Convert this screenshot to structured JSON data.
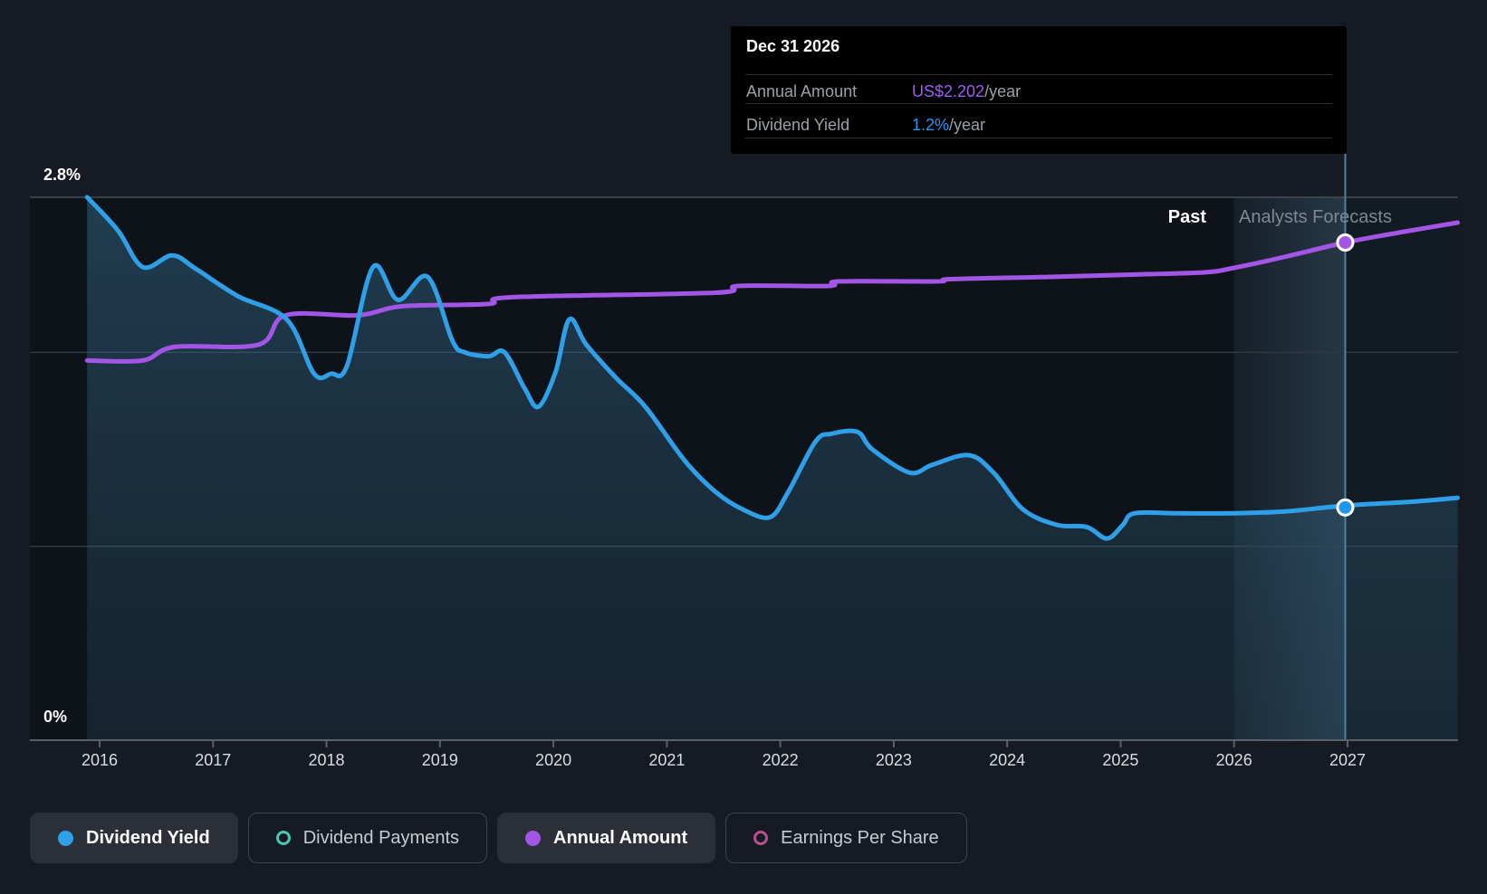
{
  "colors": {
    "page_bg": "#161b23",
    "plot_bg": "#0e1319",
    "dividend_yield_line": "#2f9fe8",
    "annual_amount_line": "#a355e5",
    "dividend_payments_accent": "#4cc4b2",
    "earnings_per_share_accent": "#bd4e8d",
    "tooltip_bg": "#000000",
    "grid_top": "#454c56",
    "grid_mid": "#313842",
    "axis_line": "#5a616b",
    "marker_line": "#53809e",
    "forecast_band": "rgba(120,180,220,0.05)",
    "tooltip_value_amount": "#9f5cee",
    "tooltip_value_yield": "#2196f3"
  },
  "tooltip": {
    "date": "Dec 31 2026",
    "rows": [
      {
        "label": "Annual Amount",
        "value": "US$2.202",
        "suffix": "/year",
        "color": "#9f5cee"
      },
      {
        "label": "Dividend Yield",
        "value": "1.2%",
        "suffix": "/year",
        "color": "#2196f3"
      }
    ]
  },
  "legend": {
    "items": [
      {
        "label": "Dividend Yield",
        "color": "#2f9fe8",
        "style": "filled",
        "active": true
      },
      {
        "label": "Dividend Payments",
        "color": "#4cc4b2",
        "style": "ring",
        "active": false
      },
      {
        "label": "Annual Amount",
        "color": "#a355e5",
        "style": "filled",
        "active": true
      },
      {
        "label": "Earnings Per Share",
        "color": "#bd4e8d",
        "style": "ring",
        "active": false
      }
    ]
  },
  "chart_data": {
    "type": "line",
    "x_axis": {
      "ticks": [
        "2016",
        "2017",
        "2018",
        "2019",
        "2020",
        "2021",
        "2022",
        "2023",
        "2024",
        "2025",
        "2026",
        "2027"
      ],
      "range_years": [
        2015.89,
        2027.97
      ]
    },
    "y_axis": {
      "label_top": "2.8%",
      "label_bottom": "0%",
      "max_pct": 2.8,
      "min_pct": 0,
      "unlabeled_gridlines_pct": [
        2.0,
        1.0
      ]
    },
    "regions": {
      "past_label": "Past",
      "forecast_label": "Analysts Forecasts",
      "forecast_start_year": 2026.0
    },
    "marker": {
      "date": "Dec 31 2026",
      "year": 2026.98,
      "annual_amount_usd": 2.202,
      "dividend_yield_pct": 1.2
    },
    "series": [
      {
        "name": "Dividend Yield",
        "unit": "%",
        "color": "#2f9fe8",
        "area_fill": true,
        "points": [
          [
            2015.89,
            2.8
          ],
          [
            2016.16,
            2.63
          ],
          [
            2016.38,
            2.44
          ],
          [
            2016.64,
            2.5
          ],
          [
            2016.85,
            2.43
          ],
          [
            2017.22,
            2.29
          ],
          [
            2017.65,
            2.17
          ],
          [
            2017.89,
            1.89
          ],
          [
            2018.04,
            1.89
          ],
          [
            2018.18,
            1.93
          ],
          [
            2018.41,
            2.44
          ],
          [
            2018.63,
            2.27
          ],
          [
            2018.89,
            2.39
          ],
          [
            2019.11,
            2.06
          ],
          [
            2019.22,
            2.0
          ],
          [
            2019.43,
            1.98
          ],
          [
            2019.57,
            2.0
          ],
          [
            2019.75,
            1.81
          ],
          [
            2019.87,
            1.72
          ],
          [
            2020.02,
            1.9
          ],
          [
            2020.14,
            2.17
          ],
          [
            2020.29,
            2.04
          ],
          [
            2020.55,
            1.87
          ],
          [
            2020.81,
            1.72
          ],
          [
            2021.16,
            1.44
          ],
          [
            2021.43,
            1.28
          ],
          [
            2021.67,
            1.19
          ],
          [
            2021.91,
            1.15
          ],
          [
            2022.07,
            1.28
          ],
          [
            2022.31,
            1.54
          ],
          [
            2022.45,
            1.58
          ],
          [
            2022.68,
            1.59
          ],
          [
            2022.81,
            1.5
          ],
          [
            2023.14,
            1.38
          ],
          [
            2023.34,
            1.42
          ],
          [
            2023.66,
            1.47
          ],
          [
            2023.88,
            1.38
          ],
          [
            2024.14,
            1.19
          ],
          [
            2024.44,
            1.11
          ],
          [
            2024.7,
            1.1
          ],
          [
            2024.88,
            1.04
          ],
          [
            2025.02,
            1.11
          ],
          [
            2025.12,
            1.17
          ],
          [
            2025.5,
            1.17
          ],
          [
            2025.98,
            1.17
          ],
          [
            2026.46,
            1.18
          ],
          [
            2026.98,
            1.21
          ],
          [
            2027.58,
            1.23
          ],
          [
            2027.97,
            1.25
          ]
        ]
      },
      {
        "name": "Annual Amount",
        "unit": "US$/year",
        "color": "#a355e5",
        "area_fill": false,
        "points": [
          [
            2015.89,
            1.68
          ],
          [
            2016.38,
            1.68
          ],
          [
            2016.66,
            1.74
          ],
          [
            2017.4,
            1.75
          ],
          [
            2017.64,
            1.88
          ],
          [
            2018.28,
            1.88
          ],
          [
            2018.67,
            1.92
          ],
          [
            2019.43,
            1.93
          ],
          [
            2019.63,
            1.96
          ],
          [
            2021.43,
            1.98
          ],
          [
            2021.63,
            2.01
          ],
          [
            2022.43,
            2.01
          ],
          [
            2022.51,
            2.03
          ],
          [
            2023.38,
            2.03
          ],
          [
            2023.5,
            2.04
          ],
          [
            2024.38,
            2.05
          ],
          [
            2025.1,
            2.06
          ],
          [
            2025.74,
            2.07
          ],
          [
            2026.0,
            2.09
          ],
          [
            2026.46,
            2.14
          ],
          [
            2026.98,
            2.202
          ],
          [
            2027.5,
            2.25
          ],
          [
            2027.97,
            2.29
          ]
        ]
      }
    ]
  }
}
